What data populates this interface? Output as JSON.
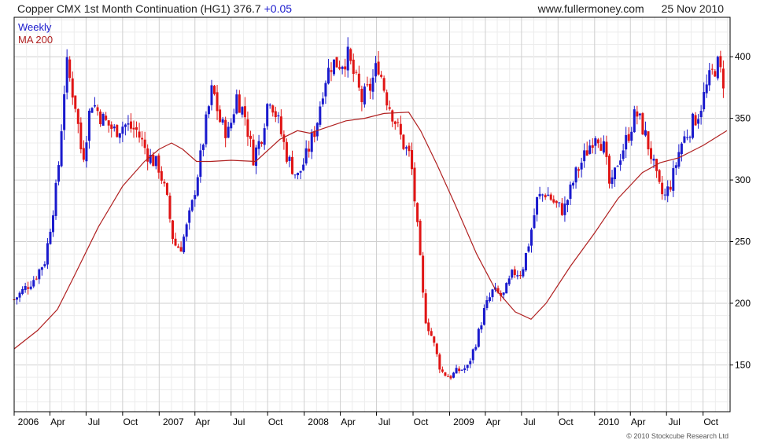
{
  "header": {
    "title": "Copper CMX 1st Month Continuation (HG1) 376.7",
    "change": "+0.05",
    "site": "www.fullermoney.com",
    "date": "25 Nov 2010"
  },
  "legend": {
    "weekly": "Weekly",
    "ma": "MA 200"
  },
  "footer": {
    "copyright": "© 2010 Stockcube Research Ltd"
  },
  "colors": {
    "up": "#1a1acd",
    "down": "#e01515",
    "ma": "#b02020",
    "grid": "#d6d6d6",
    "axis": "#000000"
  },
  "chart_data": {
    "type": "candlestick-bar",
    "title": "Copper CMX 1st Month Continuation (HG1) 376.7 +0.05",
    "frequency": "Weekly",
    "y_axis_side": "right",
    "grid": true,
    "ylim": [
      112,
      432
    ],
    "y_ticks": [
      150,
      200,
      250,
      300,
      350,
      400
    ],
    "x_range": [
      "2006-01-01",
      "2010-12-08"
    ],
    "x_ticks": [
      {
        "label": "2006",
        "date": "2006-01-01"
      },
      {
        "label": "Apr",
        "date": "2006-04-01"
      },
      {
        "label": "Jul",
        "date": "2006-07-01"
      },
      {
        "label": "Oct",
        "date": "2006-10-01"
      },
      {
        "label": "2007",
        "date": "2007-01-01"
      },
      {
        "label": "Apr",
        "date": "2007-04-01"
      },
      {
        "label": "Jul",
        "date": "2007-07-01"
      },
      {
        "label": "Oct",
        "date": "2007-10-01"
      },
      {
        "label": "2008",
        "date": "2008-01-01"
      },
      {
        "label": "Apr",
        "date": "2008-04-01"
      },
      {
        "label": "Jul",
        "date": "2008-07-01"
      },
      {
        "label": "Oct",
        "date": "2008-10-01"
      },
      {
        "label": "2009",
        "date": "2009-01-01"
      },
      {
        "label": "Apr",
        "date": "2009-04-01"
      },
      {
        "label": "Jul",
        "date": "2009-07-01"
      },
      {
        "label": "Oct",
        "date": "2009-10-01"
      },
      {
        "label": "2010",
        "date": "2010-01-01"
      },
      {
        "label": "Apr",
        "date": "2010-04-01"
      },
      {
        "label": "Jul",
        "date": "2010-07-01"
      },
      {
        "label": "Oct",
        "date": "2010-10-01"
      }
    ],
    "price_path": [
      [
        "2006-01-01",
        203
      ],
      [
        "2006-01-28",
        212
      ],
      [
        "2006-02-20",
        220
      ],
      [
        "2006-03-20",
        235
      ],
      [
        "2006-04-20",
        300
      ],
      [
        "2006-05-12",
        395
      ],
      [
        "2006-06-05",
        360
      ],
      [
        "2006-06-22",
        315
      ],
      [
        "2006-07-14",
        365
      ],
      [
        "2006-08-10",
        350
      ],
      [
        "2006-09-10",
        340
      ],
      [
        "2006-10-05",
        345
      ],
      [
        "2006-11-05",
        340
      ],
      [
        "2006-12-05",
        320
      ],
      [
        "2007-01-01",
        310
      ],
      [
        "2007-01-20",
        285
      ],
      [
        "2007-02-07",
        248
      ],
      [
        "2007-02-24",
        245
      ],
      [
        "2007-03-10",
        260
      ],
      [
        "2007-03-25",
        280
      ],
      [
        "2007-04-15",
        318
      ],
      [
        "2007-05-01",
        350
      ],
      [
        "2007-05-15",
        375
      ],
      [
        "2007-06-05",
        345
      ],
      [
        "2007-06-25",
        338
      ],
      [
        "2007-07-15",
        368
      ],
      [
        "2007-08-05",
        352
      ],
      [
        "2007-08-25",
        318
      ],
      [
        "2007-09-15",
        335
      ],
      [
        "2007-10-05",
        370
      ],
      [
        "2007-10-25",
        350
      ],
      [
        "2007-11-20",
        318
      ],
      [
        "2007-12-15",
        302
      ],
      [
        "2008-01-05",
        318
      ],
      [
        "2008-02-01",
        345
      ],
      [
        "2008-02-20",
        380
      ],
      [
        "2008-03-10",
        395
      ],
      [
        "2008-04-01",
        395
      ],
      [
        "2008-04-20",
        400
      ],
      [
        "2008-05-10",
        380
      ],
      [
        "2008-05-25",
        365
      ],
      [
        "2008-06-15",
        375
      ],
      [
        "2008-07-05",
        395
      ],
      [
        "2008-07-25",
        368
      ],
      [
        "2008-08-15",
        350
      ],
      [
        "2008-09-05",
        330
      ],
      [
        "2008-09-25",
        318
      ],
      [
        "2008-10-15",
        250
      ],
      [
        "2008-10-30",
        190
      ],
      [
        "2008-11-20",
        170
      ],
      [
        "2008-12-10",
        145
      ],
      [
        "2009-01-01",
        140
      ],
      [
        "2009-01-20",
        145
      ],
      [
        "2009-02-15",
        148
      ],
      [
        "2009-03-10",
        170
      ],
      [
        "2009-03-30",
        195
      ],
      [
        "2009-04-20",
        210
      ],
      [
        "2009-05-15",
        205
      ],
      [
        "2009-06-10",
        225
      ],
      [
        "2009-07-01",
        225
      ],
      [
        "2009-07-20",
        250
      ],
      [
        "2009-08-10",
        285
      ],
      [
        "2009-09-01",
        290
      ],
      [
        "2009-09-25",
        280
      ],
      [
        "2009-10-15",
        275
      ],
      [
        "2009-11-15",
        305
      ],
      [
        "2009-12-15",
        325
      ],
      [
        "2010-01-05",
        340
      ],
      [
        "2010-01-25",
        325
      ],
      [
        "2010-02-10",
        290
      ],
      [
        "2010-02-28",
        315
      ],
      [
        "2010-03-25",
        335
      ],
      [
        "2010-04-15",
        355
      ],
      [
        "2010-05-05",
        340
      ],
      [
        "2010-05-25",
        318
      ],
      [
        "2010-06-10",
        295
      ],
      [
        "2010-06-25",
        285
      ],
      [
        "2010-07-15",
        300
      ],
      [
        "2010-08-05",
        328
      ],
      [
        "2010-08-25",
        340
      ],
      [
        "2010-09-20",
        355
      ],
      [
        "2010-10-15",
        380
      ],
      [
        "2010-11-05",
        395
      ],
      [
        "2010-11-25",
        377
      ]
    ],
    "ma_200": [
      [
        "2006-01-01",
        163
      ],
      [
        "2006-03-01",
        178
      ],
      [
        "2006-04-20",
        195
      ],
      [
        "2006-06-01",
        222
      ],
      [
        "2006-08-01",
        262
      ],
      [
        "2006-10-01",
        295
      ],
      [
        "2006-11-25",
        315
      ],
      [
        "2007-01-01",
        325
      ],
      [
        "2007-02-01",
        330
      ],
      [
        "2007-03-01",
        325
      ],
      [
        "2007-04-05",
        315
      ],
      [
        "2007-05-10",
        315
      ],
      [
        "2007-07-01",
        316
      ],
      [
        "2007-09-01",
        315
      ],
      [
        "2007-11-01",
        333
      ],
      [
        "2007-12-15",
        340
      ],
      [
        "2008-01-15",
        338
      ],
      [
        "2008-02-20",
        342
      ],
      [
        "2008-04-15",
        348
      ],
      [
        "2008-06-01",
        350
      ],
      [
        "2008-07-20",
        354
      ],
      [
        "2008-09-20",
        355
      ],
      [
        "2008-10-20",
        340
      ],
      [
        "2008-12-01",
        312
      ],
      [
        "2009-01-15",
        280
      ],
      [
        "2009-03-10",
        240
      ],
      [
        "2009-04-25",
        212
      ],
      [
        "2009-06-15",
        193
      ],
      [
        "2009-07-25",
        187
      ],
      [
        "2009-09-01",
        200
      ],
      [
        "2009-11-01",
        230
      ],
      [
        "2010-01-01",
        257
      ],
      [
        "2010-03-01",
        285
      ],
      [
        "2010-05-01",
        306
      ],
      [
        "2010-06-15",
        314
      ],
      [
        "2010-08-01",
        318
      ],
      [
        "2010-10-01",
        328
      ],
      [
        "2010-11-30",
        340
      ]
    ]
  }
}
